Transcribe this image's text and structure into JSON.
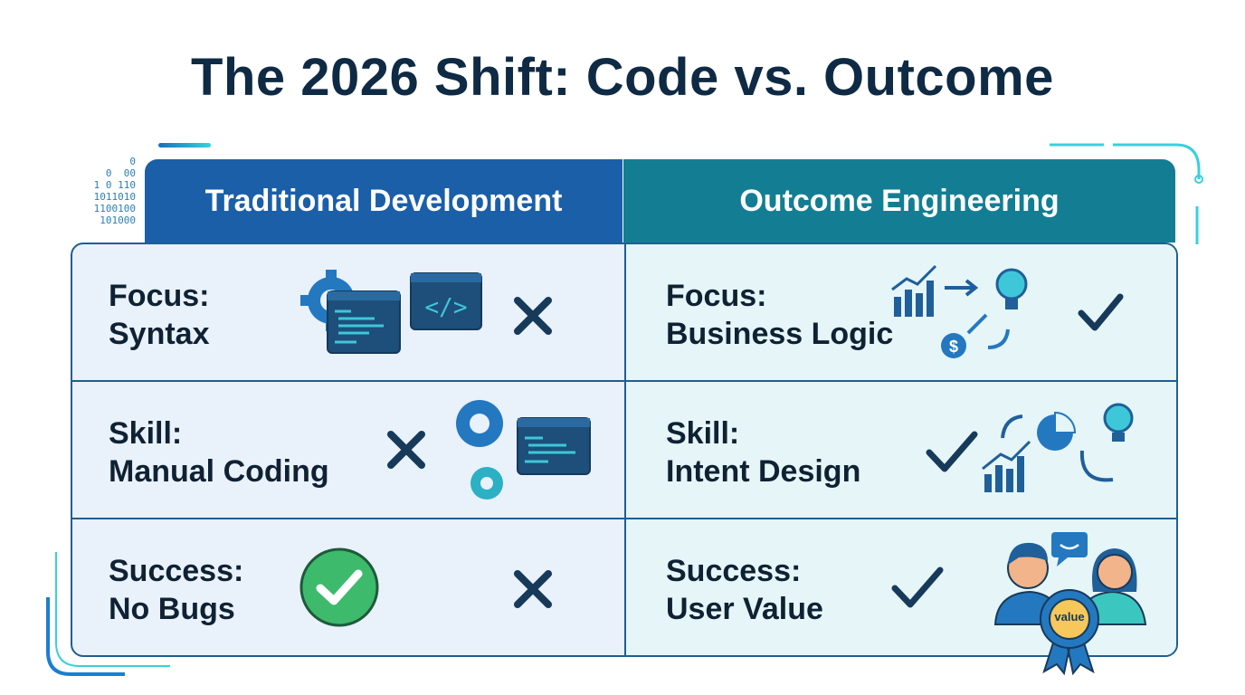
{
  "title": "The 2026 Shift: Code vs. Outcome",
  "columns": [
    {
      "label": "Traditional Development",
      "color": "#1a5fa8"
    },
    {
      "label": "Outcome Engineering",
      "color": "#137e93"
    }
  ],
  "rows": [
    {
      "left": {
        "line1": "Focus:",
        "line2": "Syntax",
        "mark": "x"
      },
      "right": {
        "line1": "Focus:",
        "line2": "Business Logic",
        "mark": "check"
      }
    },
    {
      "left": {
        "line1": "Skill:",
        "line2": "Manual Coding",
        "mark": "x"
      },
      "right": {
        "line1": "Skill:",
        "line2": "Intent Design",
        "mark": "check"
      }
    },
    {
      "left": {
        "line1": "Success:",
        "line2": "No Bugs",
        "mark": "x"
      },
      "right": {
        "line1": "Success:",
        "line2": "User Value",
        "mark": "check"
      }
    }
  ],
  "badge_text": "value",
  "binary_deco": [
    "0",
    "0  00",
    "1 0 110",
    "1011010",
    "1100100",
    "101000"
  ],
  "colors": {
    "text": "#0f2233",
    "green_check": "#3dba6b",
    "accent_cyan": "#2fc6d6"
  }
}
